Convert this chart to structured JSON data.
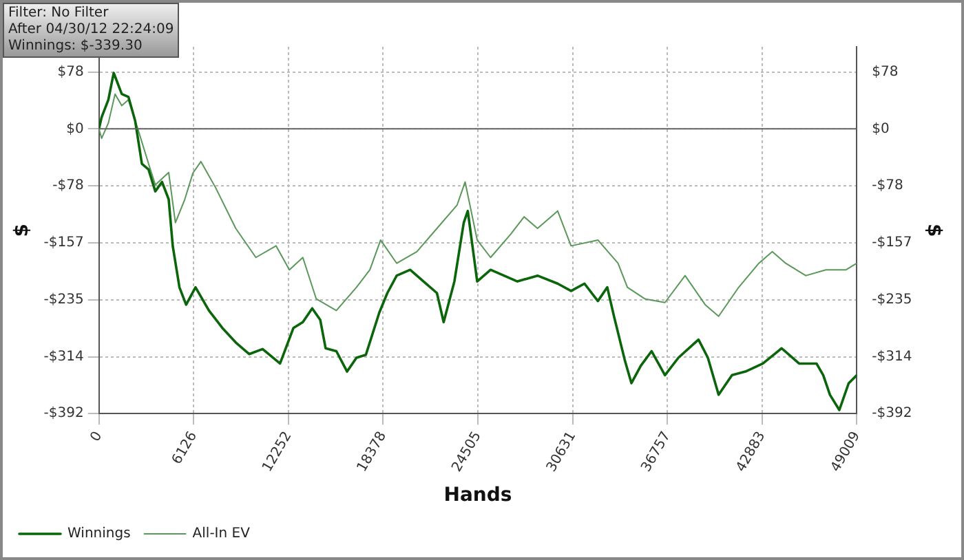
{
  "chart_data": {
    "type": "line",
    "xlabel": "Hands",
    "ylabel": "$",
    "y2label": "$",
    "annotations": [
      "Filter: No Filter",
      "After 04/30/12 22:24:09",
      "Winnings: $-339.30"
    ],
    "series": [
      {
        "name": "Winnings",
        "color": "#0b650b",
        "x": [
          0,
          173,
          607,
          954,
          1475,
          1908,
          2342,
          2776,
          3209,
          3643,
          4077,
          4510,
          4771,
          5204,
          5638,
          6245,
          7113,
          7980,
          8847,
          9715,
          10582,
          11710,
          12577,
          13184,
          13791,
          14312,
          14659,
          15353,
          16047,
          16654,
          17261,
          18128,
          18649,
          19256,
          20124,
          20991,
          21858,
          22292,
          22986,
          23593,
          23853,
          24460,
          25328,
          26195,
          27062,
          28363,
          29664,
          30531,
          31399,
          32266,
          32873,
          33309,
          34002,
          34436,
          35043,
          35737,
          36604,
          37472,
          38773,
          39380,
          40074,
          40941,
          41809,
          42937,
          44151,
          45279,
          46406,
          46840,
          47274,
          47881,
          48488,
          49009
        ],
        "values": [
          0,
          16,
          40,
          77,
          48,
          44,
          11,
          -48,
          -56,
          -86,
          -73,
          -97,
          -161,
          -218,
          -242,
          -218,
          -250,
          -274,
          -294,
          -310,
          -303,
          -323,
          -274,
          -266,
          -247,
          -263,
          -302,
          -306,
          -334,
          -315,
          -311,
          -253,
          -226,
          -202,
          -194,
          -210,
          -226,
          -266,
          -210,
          -129,
          -113,
          -210,
          -194,
          -202,
          -210,
          -202,
          -213,
          -223,
          -213,
          -237,
          -218,
          -258,
          -318,
          -350,
          -326,
          -306,
          -339,
          -315,
          -290,
          -315,
          -366,
          -339,
          -334,
          -323,
          -302,
          -323,
          -323,
          -339,
          -366,
          -387,
          -350,
          -339
        ]
      },
      {
        "name": "All-In EV",
        "color": "#5a985a",
        "x": [
          0,
          173,
          607,
          1041,
          1475,
          1908,
          2515,
          3209,
          3643,
          4510,
          4944,
          5551,
          6072,
          6592,
          7546,
          8847,
          10148,
          11450,
          12317,
          13184,
          14052,
          15353,
          16654,
          17521,
          18215,
          19256,
          20557,
          21858,
          23159,
          23680,
          24460,
          25328,
          26629,
          27496,
          28363,
          29664,
          30531,
          32266,
          33568,
          34175,
          35303,
          36604,
          37905,
          39206,
          40074,
          41375,
          42676,
          43543,
          44411,
          45712,
          47013,
          48314,
          49009
        ],
        "values": [
          0,
          -13,
          8,
          48,
          32,
          40,
          0,
          -48,
          -77,
          -60,
          -129,
          -97,
          -61,
          -45,
          -81,
          -137,
          -177,
          -161,
          -194,
          -177,
          -234,
          -250,
          -218,
          -194,
          -153,
          -185,
          -169,
          -137,
          -105,
          -73,
          -153,
          -177,
          -145,
          -121,
          -137,
          -113,
          -161,
          -153,
          -185,
          -218,
          -234,
          -239,
          -202,
          -242,
          -258,
          -218,
          -185,
          -169,
          -185,
          -202,
          -194,
          -194,
          -185
        ]
      }
    ],
    "xlim": [
      0,
      49009
    ],
    "xticks": [
      0,
      6126,
      12252,
      18378,
      24505,
      30631,
      36757,
      42883,
      49009
    ],
    "ylim": [
      -392,
      113
    ],
    "yticks": [
      {
        "value": -392,
        "label": "-$392"
      },
      {
        "value": -314,
        "label": "-$314"
      },
      {
        "value": -235,
        "label": "-$235"
      },
      {
        "value": -157,
        "label": "-$157"
      },
      {
        "value": -78,
        "label": "-$78"
      },
      {
        "value": 0,
        "label": "$0"
      },
      {
        "value": 78,
        "label": "$78"
      }
    ],
    "y2lim": [
      -392,
      113
    ],
    "y2ticks": [
      {
        "value": -392,
        "label": "-$392"
      },
      {
        "value": -314,
        "label": "-$314"
      },
      {
        "value": -235,
        "label": "-$235"
      },
      {
        "value": -157,
        "label": "-$157"
      },
      {
        "value": -78,
        "label": "-$78"
      },
      {
        "value": 0,
        "label": "$0"
      },
      {
        "value": 78,
        "label": "$78"
      }
    ],
    "ref_lines": [
      {
        "axis": "y",
        "value": 0,
        "color": "#666666"
      }
    ],
    "grid": true,
    "legend": "bottom left",
    "marker": "none",
    "line_style": "solid"
  }
}
